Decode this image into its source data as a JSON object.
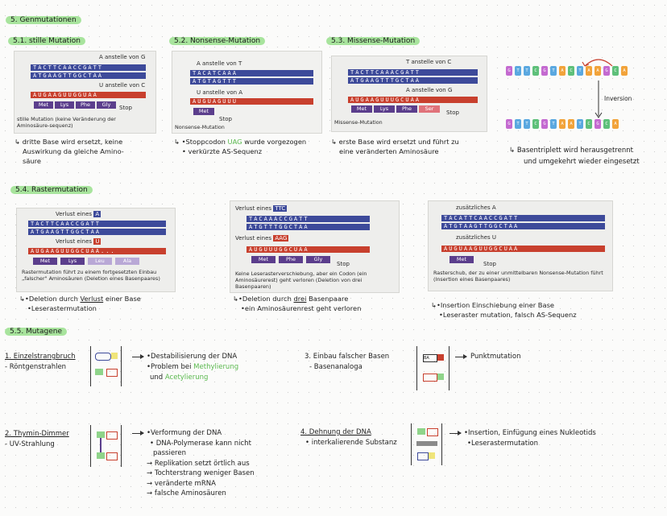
{
  "main_title": "5. Genmutationen",
  "sections": {
    "s1": {
      "title": "5.1. stille Mutation",
      "img_top": "A anstelle von G",
      "img_mid": "U anstelle von C",
      "img_caption": "stille Mutation (keine Veränderung der Aminosäure-sequenz)",
      "stop": "Stop",
      "aas": [
        "Met",
        "Lys",
        "Phe",
        "Gly"
      ],
      "notes": [
        "dritte Base wird ersetzt, keine",
        "Auswirkung da gleiche Amino-",
        "säure"
      ]
    },
    "s2": {
      "title": "5.2. Nonsense-Mutation",
      "img_top": "A anstelle von T",
      "img_mid": "U anstelle von A",
      "img_caption": "Nonsense-Mutation",
      "stop": "Stop",
      "aas": [
        "Met"
      ],
      "notes_pre": "Stoppcodon",
      "notes_green": "UAG",
      "notes_post": "wurde vorgezogen",
      "notes2": "verkürzte AS-Sequenz"
    },
    "s3": {
      "title": "5.3. Missense-Mutation",
      "img_top": "T anstelle von C",
      "img_mid": "A anstelle von G",
      "img_caption": "Missense-Mutation",
      "stop": "Stop",
      "aas": [
        "Met",
        "Lys",
        "Phe",
        "Ser"
      ],
      "notes": [
        "erste Base wird ersetzt und führt zu",
        "eine veränderten Aminosäure"
      ]
    },
    "inv": {
      "label": "Inversion",
      "top_bases": [
        "G",
        "T",
        "T",
        "C",
        "G",
        "T",
        "A",
        "C",
        "T",
        "A",
        "A",
        "G",
        "C",
        "A"
      ],
      "bottom_bases": [
        "G",
        "T",
        "T",
        "C",
        "G",
        "T",
        "A",
        "A",
        "T",
        "C",
        "G",
        "C",
        "A"
      ],
      "notes": [
        "Basentriplett wird herausgetrennt",
        "und umgekehrt wieder eingesetzt"
      ]
    },
    "s4": {
      "title": "5.4. Rastermutation"
    },
    "r1": {
      "top": "Verlust eines",
      "top_tag": "A",
      "mid": "Verlust eines",
      "mid_tag": "U",
      "aas": [
        "Met",
        "Lys",
        "Leu",
        "Ala"
      ],
      "caption": "Rastermutation führt zu einem fortgesetzten Einbau „falscher\" Aminosäuren (Deletion eines Basenpaares)",
      "note1_pre": "Deletion durch",
      "note1_u": "Verlust",
      "note1_post": "einer Base",
      "note2": "Leserastermutation"
    },
    "r2": {
      "top": "Verlust eines",
      "top_tag": "TTC",
      "mid": "Verlust eines",
      "mid_tag": "AAG",
      "aas": [
        "Met",
        "Phe",
        "Gly"
      ],
      "stop": "Stop",
      "caption": "Keine Leserasterverschiebung, aber ein Codon (ein Aminosäurerest) geht verloren (Deletion von drei Basenpaaren)",
      "note1_pre": "Deletion durch",
      "note1_u": "drei",
      "note1_post": "Basenpaare",
      "note2": "ein Aminosäurenrest geht verloren"
    },
    "r3": {
      "top": "zusätzliches A",
      "mid": "zusätzliches U",
      "aas": [
        "Met"
      ],
      "stop": "Stop",
      "caption": "Rasterschub, der zu einer unmittelbaren Nonsense-Mutation führt (Insertion eines Basenpaares)",
      "note1": "Insertion Einschiebung einer Base",
      "note2": "Leseraster mutation, falsch AS-Sequenz"
    },
    "s5": {
      "title": "5.5. Mutagene"
    },
    "m1": {
      "title": "1. Einzelstrangbruch",
      "sub": "Röntgenstrahlen",
      "n1": "Destabilisierung der DNA",
      "n2_pre": "Problem bei",
      "n2_green": "Methylierung",
      "n3_pre": "und",
      "n3_green": "Acetylierung"
    },
    "m2": {
      "title": "2. Thymin-Dimmer",
      "sub": "UV-Strahlung",
      "n1": "Verformung der DNA",
      "n2": "DNA-Polymerase kann nicht",
      "n3": "passieren",
      "n4": "Replikation setzt örtlich aus",
      "n5": "Tochterstrang weniger Basen",
      "n6": "veränderte mRNA",
      "n7": "falsche Aminosäuren"
    },
    "m3": {
      "title": "3. Einbau falscher Basen",
      "sub": "Basenanaloga",
      "n1": "Punktmutation"
    },
    "m4": {
      "title": "4. Dehnung der DNA",
      "sub": "interkalierende Substanz",
      "n1": "Insertion, Einfügung eines Nukleotids",
      "n2": "Leserastermutation"
    }
  },
  "colors": {
    "highlight": "#a8e49d",
    "green_text": "#59b84d",
    "dna_blue": "#3d4a9a",
    "rna_red": "#c8402e",
    "aa_purple": "#5b3e8c"
  }
}
